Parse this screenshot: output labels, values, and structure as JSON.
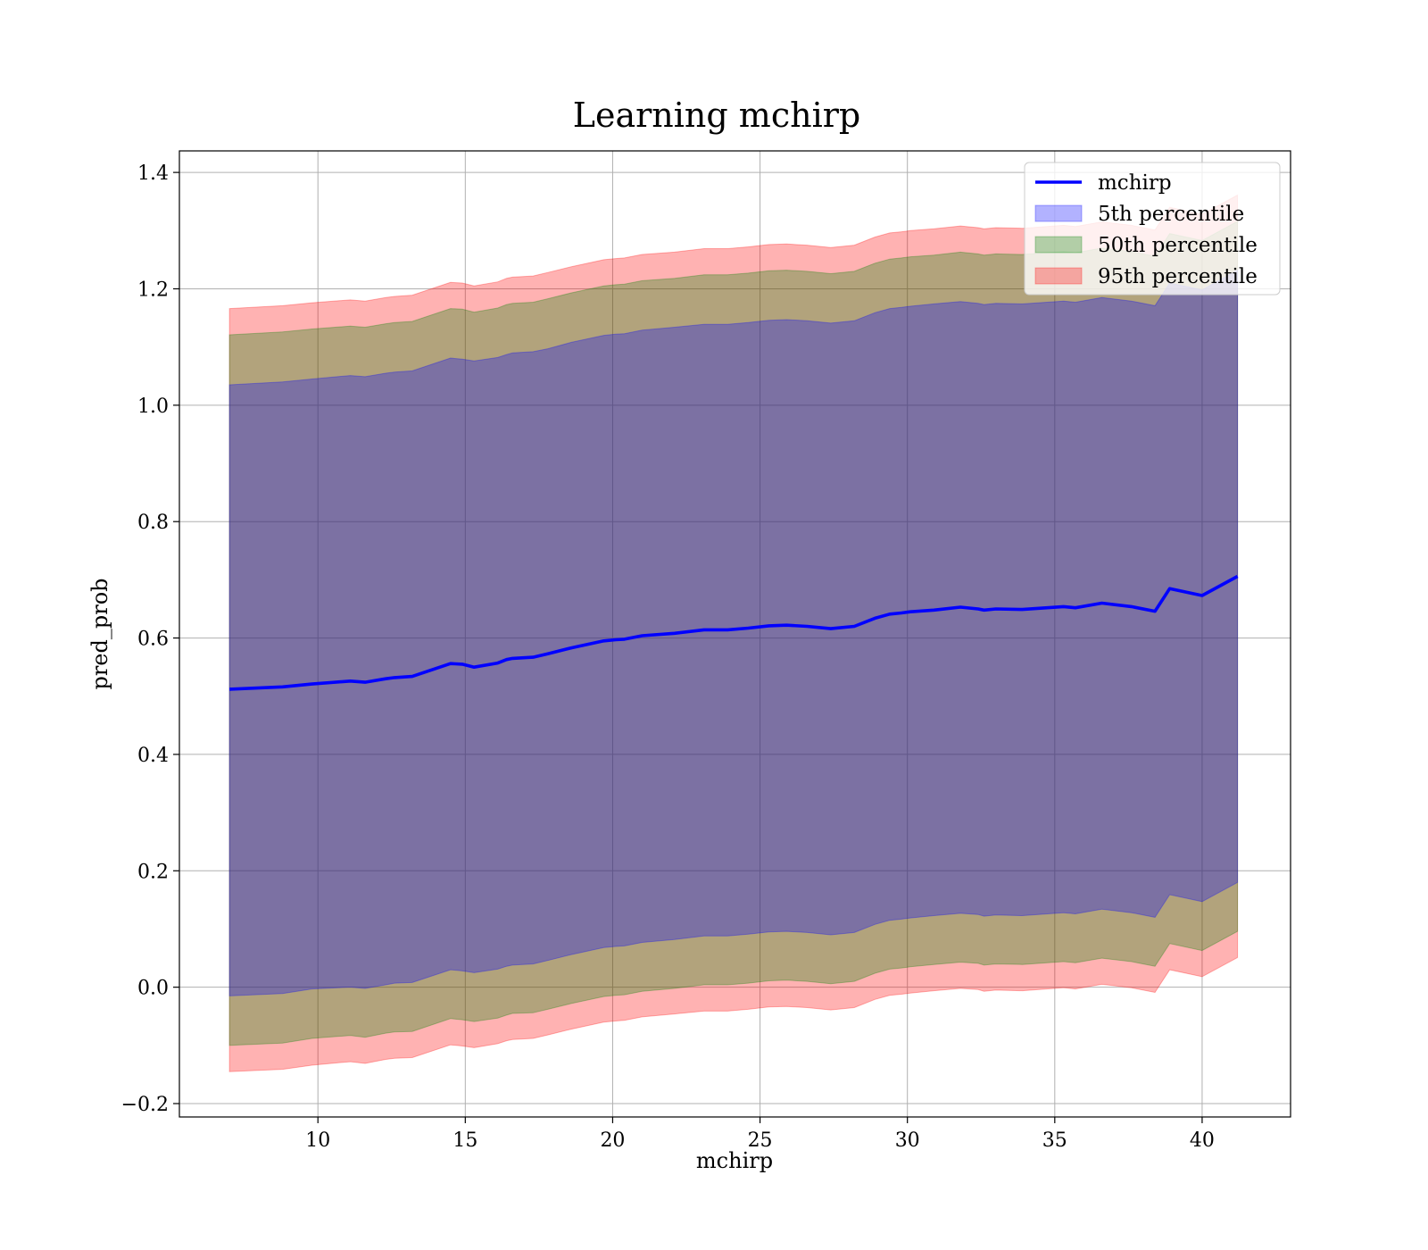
{
  "chart_data": {
    "type": "line",
    "title": "Learning mchirp",
    "xlabel": "mchirp",
    "ylabel": "pred_prob",
    "xlim": [
      5.3,
      43.0
    ],
    "ylim": [
      -0.223,
      1.437
    ],
    "xticks": [
      10,
      15,
      20,
      25,
      30,
      35,
      40
    ],
    "yticks": [
      -0.2,
      0.0,
      0.2,
      0.4,
      0.6,
      0.8,
      1.0,
      1.2,
      1.4
    ],
    "ytick_labels": [
      "−0.2",
      "0.0",
      "0.2",
      "0.4",
      "0.6",
      "0.8",
      "1.0",
      "1.2",
      "1.4"
    ],
    "grid": true,
    "legend_position": "upper-right",
    "x": [
      7.0,
      8.8,
      9.8,
      11.1,
      11.6,
      12.3,
      12.6,
      13.2,
      14.5,
      14.9,
      15.3,
      16.1,
      16.4,
      16.6,
      17.3,
      17.8,
      18.6,
      19.7,
      20.1,
      20.4,
      21.0,
      22.1,
      23.1,
      23.9,
      24.6,
      25.3,
      25.9,
      26.6,
      27.4,
      28.2,
      28.9,
      29.4,
      29.8,
      30.1,
      30.9,
      31.8,
      32.4,
      32.6,
      33.0,
      33.9,
      35.3,
      35.7,
      36.6,
      37.6,
      38.4,
      38.9,
      40.0,
      41.2
    ],
    "series": [
      {
        "name": "mchirp",
        "color": "#0000ff",
        "kind": "line",
        "values": [
          0.512,
          0.516,
          0.521,
          0.526,
          0.524,
          0.53,
          0.532,
          0.534,
          0.556,
          0.555,
          0.55,
          0.557,
          0.563,
          0.565,
          0.567,
          0.573,
          0.583,
          0.595,
          0.597,
          0.598,
          0.604,
          0.608,
          0.614,
          0.614,
          0.617,
          0.621,
          0.622,
          0.62,
          0.616,
          0.62,
          0.634,
          0.641,
          0.643,
          0.645,
          0.648,
          0.653,
          0.65,
          0.648,
          0.65,
          0.649,
          0.654,
          0.652,
          0.66,
          0.654,
          0.646,
          0.685,
          0.673,
          0.706
        ]
      },
      {
        "name": "5th percentile",
        "color": "#0000ff",
        "kind": "band",
        "lower": [
          -0.015,
          -0.011,
          -0.003,
          0.0,
          -0.002,
          0.004,
          0.007,
          0.008,
          0.03,
          0.028,
          0.025,
          0.031,
          0.036,
          0.038,
          0.04,
          0.046,
          0.056,
          0.068,
          0.07,
          0.071,
          0.077,
          0.082,
          0.088,
          0.088,
          0.091,
          0.095,
          0.096,
          0.094,
          0.09,
          0.094,
          0.108,
          0.115,
          0.117,
          0.119,
          0.123,
          0.127,
          0.125,
          0.122,
          0.124,
          0.123,
          0.128,
          0.126,
          0.134,
          0.128,
          0.12,
          0.159,
          0.147,
          0.18
        ],
        "upper": [
          1.035,
          1.04,
          1.045,
          1.051,
          1.049,
          1.055,
          1.057,
          1.059,
          1.081,
          1.079,
          1.076,
          1.082,
          1.087,
          1.09,
          1.092,
          1.097,
          1.108,
          1.12,
          1.122,
          1.123,
          1.129,
          1.134,
          1.139,
          1.139,
          1.142,
          1.146,
          1.147,
          1.145,
          1.141,
          1.145,
          1.159,
          1.166,
          1.168,
          1.17,
          1.174,
          1.178,
          1.175,
          1.173,
          1.175,
          1.174,
          1.179,
          1.177,
          1.185,
          1.179,
          1.171,
          1.21,
          1.198,
          1.232
        ]
      },
      {
        "name": "50th percentile",
        "color": "#008000",
        "kind": "band",
        "lower": [
          -0.1,
          -0.096,
          -0.088,
          -0.083,
          -0.086,
          -0.079,
          -0.077,
          -0.076,
          -0.054,
          -0.056,
          -0.059,
          -0.053,
          -0.048,
          -0.045,
          -0.044,
          -0.038,
          -0.028,
          -0.016,
          -0.014,
          -0.013,
          -0.007,
          -0.002,
          0.004,
          0.004,
          0.007,
          0.011,
          0.012,
          0.01,
          0.006,
          0.01,
          0.024,
          0.031,
          0.033,
          0.035,
          0.039,
          0.043,
          0.041,
          0.038,
          0.04,
          0.039,
          0.044,
          0.042,
          0.05,
          0.044,
          0.036,
          0.075,
          0.063,
          0.096
        ],
        "upper": [
          1.121,
          1.126,
          1.131,
          1.136,
          1.134,
          1.14,
          1.142,
          1.144,
          1.166,
          1.165,
          1.16,
          1.167,
          1.173,
          1.175,
          1.177,
          1.183,
          1.193,
          1.205,
          1.207,
          1.208,
          1.214,
          1.218,
          1.224,
          1.224,
          1.227,
          1.231,
          1.232,
          1.23,
          1.226,
          1.23,
          1.244,
          1.251,
          1.253,
          1.255,
          1.258,
          1.263,
          1.26,
          1.258,
          1.26,
          1.259,
          1.264,
          1.262,
          1.27,
          1.264,
          1.256,
          1.295,
          1.283,
          1.316
        ]
      },
      {
        "name": "95th percentile",
        "color": "#ff0000",
        "kind": "band",
        "lower": [
          -0.145,
          -0.141,
          -0.134,
          -0.128,
          -0.131,
          -0.124,
          -0.122,
          -0.121,
          -0.099,
          -0.101,
          -0.104,
          -0.097,
          -0.092,
          -0.09,
          -0.088,
          -0.082,
          -0.072,
          -0.06,
          -0.058,
          -0.057,
          -0.051,
          -0.046,
          -0.041,
          -0.041,
          -0.038,
          -0.034,
          -0.033,
          -0.035,
          -0.039,
          -0.035,
          -0.021,
          -0.014,
          -0.012,
          -0.01,
          -0.006,
          -0.002,
          -0.004,
          -0.007,
          -0.005,
          -0.006,
          -0.001,
          -0.003,
          0.005,
          -0.001,
          -0.009,
          0.03,
          0.018,
          0.051
        ],
        "upper": [
          1.166,
          1.171,
          1.176,
          1.181,
          1.179,
          1.185,
          1.187,
          1.189,
          1.211,
          1.21,
          1.205,
          1.212,
          1.218,
          1.22,
          1.222,
          1.228,
          1.238,
          1.25,
          1.252,
          1.253,
          1.259,
          1.263,
          1.269,
          1.269,
          1.272,
          1.276,
          1.277,
          1.275,
          1.271,
          1.275,
          1.289,
          1.296,
          1.298,
          1.3,
          1.303,
          1.308,
          1.305,
          1.303,
          1.305,
          1.304,
          1.309,
          1.307,
          1.315,
          1.309,
          1.301,
          1.34,
          1.328,
          1.361
        ]
      }
    ]
  }
}
